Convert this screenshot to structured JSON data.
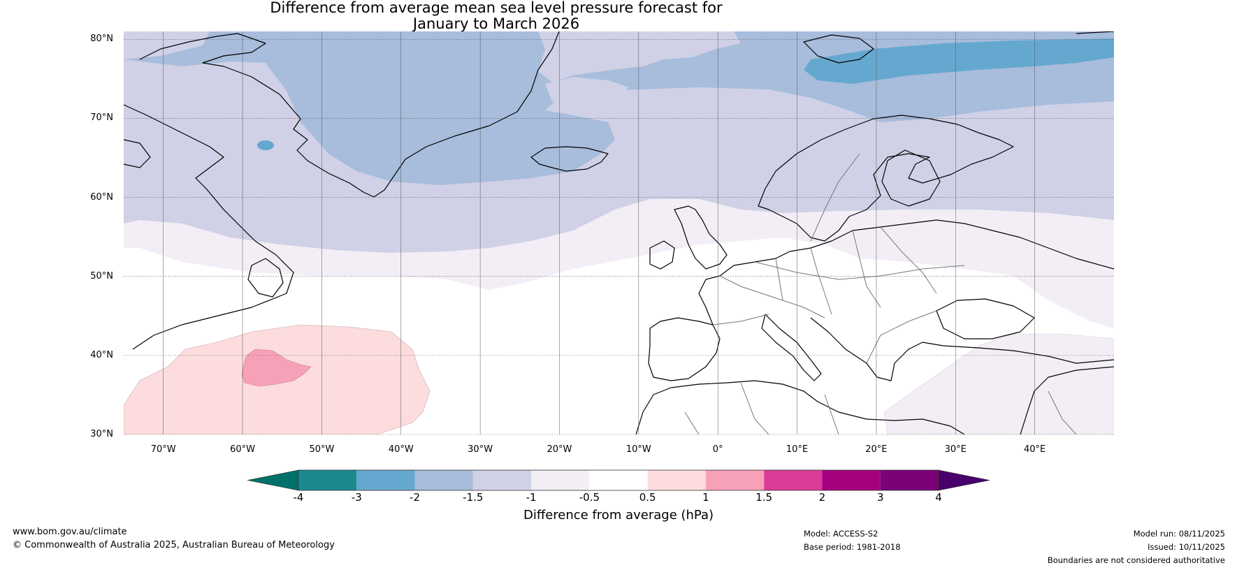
{
  "title": {
    "line1": "Difference from average mean sea level pressure forecast for",
    "line2": "January to March 2026"
  },
  "map": {
    "lat_labels": [
      "80°N",
      "70°N",
      "60°N",
      "50°N",
      "40°N",
      "30°N"
    ],
    "lon_labels": [
      "70°W",
      "60°W",
      "50°W",
      "40°W",
      "30°W",
      "20°W",
      "10°W",
      "0°",
      "10°E",
      "20°E",
      "30°E",
      "40°E"
    ],
    "lat_range": [
      30,
      81
    ],
    "lon_range": [
      -75,
      50
    ],
    "lat_ticks": [
      80,
      70,
      60,
      50,
      40,
      30
    ],
    "lon_ticks": [
      -70,
      -60,
      -50,
      -40,
      -30,
      -20,
      -10,
      0,
      10,
      20,
      30,
      40
    ]
  },
  "colorbar": {
    "title": "Difference from average (hPa)",
    "boundaries": [
      "-4",
      "-3",
      "-2",
      "-1.5",
      "-1",
      "-0.5",
      "0.5",
      "1",
      "1.5",
      "2",
      "3",
      "4"
    ],
    "colors": [
      "#1a8a8f",
      "#65a8cf",
      "#a8bcdc",
      "#d0d1e6",
      "#f3eef6",
      "#ffffff",
      "#fcdcdc",
      "#f7a1b8",
      "#dc3c9a",
      "#a6007f",
      "#7a0177"
    ],
    "under_color": "#007068",
    "over_color": "#49006a"
  },
  "footer": {
    "url": "www.bom.gov.au/climate",
    "copyright": "© Commonwealth of Australia 2025, Australian Bureau of Meteorology",
    "model": "Model: ACCESS-S2",
    "base_period": "Base period: 1981-2018",
    "model_run": "Model run: 08/11/2025",
    "issued": "Issued: 10/11/2025",
    "disclaimer": "Boundaries are not considered authoritative"
  }
}
